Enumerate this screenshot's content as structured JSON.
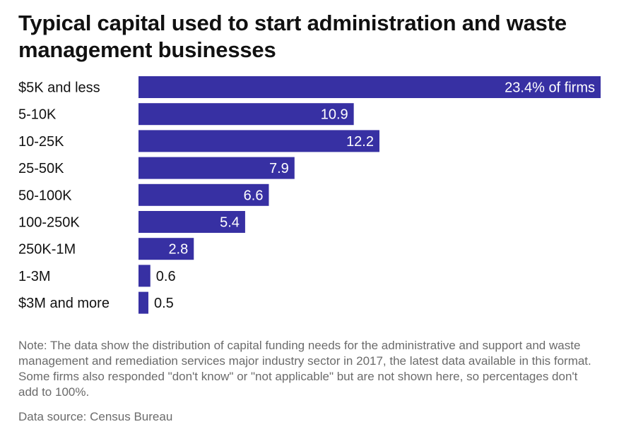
{
  "title": "Typical capital used to start administration and waste management businesses",
  "note": "Note: The data show the distribution of capital funding needs for the administrative and support and waste management and remediation services major industry sector in 2017, the latest data available in this format. Some firms also responded \"don't know\" or \"not applicable\" but are not shown here, so percentages don't add to 100%.",
  "source": "Data source: Census Bureau",
  "colors": {
    "bar": "#3730a3",
    "label_inside": "#ffffff",
    "label_outside": "#111111"
  },
  "chart_data": {
    "type": "bar",
    "orientation": "horizontal",
    "title": "Typical capital used to start administration and waste management businesses",
    "categories": [
      "$5K and less",
      "5-10K",
      "10-25K",
      "25-50K",
      "50-100K",
      "100-250K",
      "250K-1M",
      "1-3M",
      "$3M and more"
    ],
    "values": [
      23.4,
      10.9,
      12.2,
      7.9,
      6.6,
      5.4,
      2.8,
      0.6,
      0.5
    ],
    "data_labels": [
      "23.4% of firms",
      "10.9",
      "12.2",
      "7.9",
      "6.6",
      "5.4",
      "2.8",
      "0.6",
      "0.5"
    ],
    "xlim": [
      0,
      23.4
    ],
    "grid": false,
    "legend": "none"
  }
}
